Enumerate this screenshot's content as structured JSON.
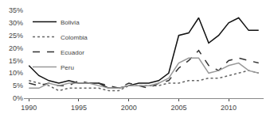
{
  "chart_data": {
    "type": "line",
    "x": [
      1990,
      1991,
      1992,
      1993,
      1994,
      1995,
      1996,
      1997,
      1998,
      1999,
      2000,
      2001,
      2002,
      2003,
      2004,
      2005,
      2006,
      2007,
      2008,
      2009,
      2010,
      2011,
      2012,
      2013
    ],
    "series": [
      {
        "name": "Bolivia",
        "color": "#111111",
        "line_style": "solid",
        "values": [
          13,
          9,
          7,
          6,
          7,
          6,
          6,
          6,
          4,
          4,
          5,
          6,
          6,
          7,
          10,
          25,
          26,
          32,
          22,
          25,
          30,
          32,
          27,
          27
        ]
      },
      {
        "name": "Colombia",
        "color": "#666666",
        "line_style": "dotted",
        "values": [
          7,
          6,
          5,
          3,
          4,
          4,
          4,
          4,
          3,
          3,
          5,
          5,
          5,
          5,
          6,
          6,
          7,
          7,
          8,
          8,
          9,
          10,
          11,
          10
        ]
      },
      {
        "name": "Ecuador",
        "color": "#333333",
        "line_style": "dashed",
        "values": [
          6,
          5,
          6,
          5,
          5,
          7,
          6,
          6,
          5,
          4,
          6,
          5,
          4,
          6,
          7,
          12,
          15,
          19,
          13,
          11,
          15,
          16,
          15,
          14
        ]
      },
      {
        "name": "Peru",
        "color": "#999999",
        "line_style": "solid",
        "values": [
          4,
          4,
          6,
          5,
          6,
          6,
          6,
          5,
          4,
          4,
          5,
          5,
          5,
          6,
          8,
          14,
          16,
          16,
          10,
          11,
          13,
          14,
          11,
          10
        ]
      }
    ],
    "xlim": [
      1989.5,
      2013.5
    ],
    "xticks": [
      1990,
      1995,
      2000,
      2005,
      2010
    ],
    "ylim": [
      0,
      35
    ],
    "yticks": [
      {
        "value": 0,
        "label": "0%"
      },
      {
        "value": 5,
        "label": "5%"
      },
      {
        "value": 10,
        "label": "10%"
      },
      {
        "value": 15,
        "label": "15%"
      },
      {
        "value": 20,
        "label": "20%"
      },
      {
        "value": 25,
        "label": "25%"
      },
      {
        "value": 30,
        "label": "30%"
      },
      {
        "value": 35,
        "label": "35%"
      }
    ],
    "grid": false,
    "legend": "upper left"
  }
}
